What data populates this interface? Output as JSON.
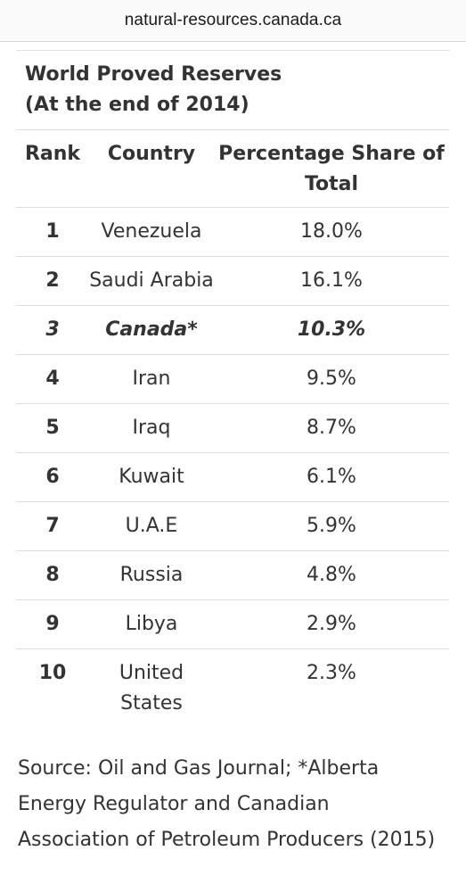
{
  "browser": {
    "url": "natural-resources.canada.ca"
  },
  "table": {
    "caption_line1": "World Proved Reserves",
    "caption_line2": "(At the end of 2014)",
    "headers": {
      "rank": "Rank",
      "country": "Country",
      "share": "Percentage Share of Total"
    },
    "rows": [
      {
        "rank": "1",
        "country": "Venezuela",
        "share": "18.0%"
      },
      {
        "rank": "2",
        "country": "Saudi Arabia",
        "share": "16.1%"
      },
      {
        "rank": "3",
        "country": "Canada*",
        "share": "10.3%",
        "highlight": true
      },
      {
        "rank": "4",
        "country": "Iran",
        "share": "9.5%"
      },
      {
        "rank": "5",
        "country": "Iraq",
        "share": "8.7%"
      },
      {
        "rank": "6",
        "country": "Kuwait",
        "share": "6.1%"
      },
      {
        "rank": "7",
        "country": "U.A.E",
        "share": "5.9%"
      },
      {
        "rank": "8",
        "country": "Russia",
        "share": "4.8%"
      },
      {
        "rank": "9",
        "country": "Libya",
        "share": "2.9%"
      },
      {
        "rank": "10",
        "country": "United States",
        "share": "2.3%"
      }
    ]
  },
  "source": {
    "line1": "Source: Oil and Gas Journal; *Alberta",
    "line2": "Energy Regulator and Canadian",
    "line3": "Association of Petroleum Producers (2015)"
  }
}
